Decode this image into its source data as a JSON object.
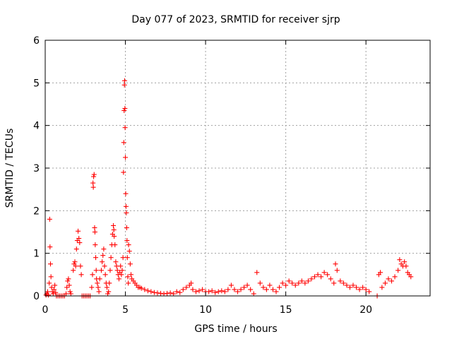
{
  "chart_data": {
    "type": "scatter",
    "title": "Day 077 of 2023, SRMTID for receiver sjrp",
    "xlabel": "GPS time / hours",
    "ylabel": "SRMTID / TECUs",
    "xlim": [
      0,
      24
    ],
    "ylim": [
      0,
      6
    ],
    "xticks": [
      0,
      5,
      10,
      15,
      20
    ],
    "yticks": [
      0,
      1,
      2,
      3,
      4,
      5,
      6
    ],
    "xtick_labels": [
      "0",
      "5",
      "10",
      "15",
      "20"
    ],
    "ytick_labels": [
      "0",
      "1",
      "2",
      "3",
      "4",
      "5",
      "6"
    ],
    "grid": true,
    "marker": "+",
    "series": [
      {
        "name": "SRMTID",
        "color": "#ff0000",
        "points": [
          [
            0.05,
            0.02
          ],
          [
            0.1,
            0.05
          ],
          [
            0.15,
            0.1
          ],
          [
            0.2,
            0.02
          ],
          [
            0.25,
            0.3
          ],
          [
            0.28,
            1.8
          ],
          [
            0.3,
            1.15
          ],
          [
            0.33,
            0.75
          ],
          [
            0.36,
            0.45
          ],
          [
            0.4,
            0.2
          ],
          [
            0.45,
            0.1
          ],
          [
            0.5,
            0.05
          ],
          [
            0.55,
            0.15
          ],
          [
            0.6,
            0.25
          ],
          [
            0.65,
            0.08
          ],
          [
            0.7,
            0.0
          ],
          [
            0.8,
            0.0
          ],
          [
            0.9,
            0.0
          ],
          [
            1.0,
            0.0
          ],
          [
            1.1,
            0.0
          ],
          [
            1.2,
            0.0
          ],
          [
            1.3,
            0.05
          ],
          [
            1.35,
            0.2
          ],
          [
            1.4,
            0.35
          ],
          [
            1.45,
            0.4
          ],
          [
            1.5,
            0.25
          ],
          [
            1.55,
            0.1
          ],
          [
            1.6,
            0.05
          ],
          [
            1.75,
            0.6
          ],
          [
            1.8,
            0.75
          ],
          [
            1.85,
            0.8
          ],
          [
            1.9,
            0.7
          ],
          [
            1.95,
            1.1
          ],
          [
            2.0,
            1.3
          ],
          [
            2.05,
            1.52
          ],
          [
            2.1,
            1.35
          ],
          [
            2.15,
            1.25
          ],
          [
            2.2,
            0.7
          ],
          [
            2.25,
            0.5
          ],
          [
            2.3,
            0.0
          ],
          [
            2.4,
            0.0
          ],
          [
            2.5,
            0.0
          ],
          [
            2.6,
            0.0
          ],
          [
            2.7,
            0.0
          ],
          [
            2.8,
            0.0
          ],
          [
            2.9,
            0.2
          ],
          [
            2.95,
            0.5
          ],
          [
            2.98,
            2.65
          ],
          [
            3.0,
            2.55
          ],
          [
            3.02,
            2.8
          ],
          [
            3.05,
            2.85
          ],
          [
            3.08,
            1.6
          ],
          [
            3.1,
            1.5
          ],
          [
            3.12,
            1.2
          ],
          [
            3.15,
            0.9
          ],
          [
            3.18,
            0.6
          ],
          [
            3.2,
            0.4
          ],
          [
            3.25,
            0.3
          ],
          [
            3.3,
            0.2
          ],
          [
            3.35,
            0.1
          ],
          [
            3.4,
            0.4
          ],
          [
            3.5,
            0.6
          ],
          [
            3.55,
            0.8
          ],
          [
            3.6,
            0.95
          ],
          [
            3.65,
            1.1
          ],
          [
            3.7,
            0.7
          ],
          [
            3.75,
            0.5
          ],
          [
            3.8,
            0.3
          ],
          [
            3.85,
            0.2
          ],
          [
            3.9,
            0.05
          ],
          [
            3.95,
            0.1
          ],
          [
            4.0,
            0.3
          ],
          [
            4.05,
            0.6
          ],
          [
            4.1,
            0.9
          ],
          [
            4.15,
            1.2
          ],
          [
            4.2,
            1.45
          ],
          [
            4.25,
            1.65
          ],
          [
            4.28,
            1.55
          ],
          [
            4.3,
            1.4
          ],
          [
            4.35,
            1.2
          ],
          [
            4.4,
            0.8
          ],
          [
            4.45,
            0.7
          ],
          [
            4.5,
            0.6
          ],
          [
            4.55,
            0.5
          ],
          [
            4.6,
            0.4
          ],
          [
            4.65,
            0.55
          ],
          [
            4.7,
            0.7
          ],
          [
            4.75,
            0.5
          ],
          [
            4.8,
            0.6
          ],
          [
            4.85,
            0.9
          ],
          [
            4.88,
            2.9
          ],
          [
            4.9,
            3.6
          ],
          [
            4.92,
            4.35
          ],
          [
            4.94,
            4.95
          ],
          [
            4.95,
            5.05
          ],
          [
            4.97,
            4.4
          ],
          [
            4.98,
            3.95
          ],
          [
            5.0,
            3.25
          ],
          [
            5.02,
            2.4
          ],
          [
            5.04,
            2.1
          ],
          [
            5.06,
            1.95
          ],
          [
            5.08,
            1.6
          ],
          [
            5.1,
            1.3
          ],
          [
            5.12,
            0.9
          ],
          [
            5.15,
            0.45
          ],
          [
            5.18,
            0.3
          ],
          [
            5.2,
            1.2
          ],
          [
            5.25,
            1.05
          ],
          [
            5.3,
            0.75
          ],
          [
            5.35,
            0.5
          ],
          [
            5.4,
            0.4
          ],
          [
            5.5,
            0.35
          ],
          [
            5.6,
            0.3
          ],
          [
            5.7,
            0.25
          ],
          [
            5.8,
            0.2
          ],
          [
            5.9,
            0.2
          ],
          [
            6.0,
            0.18
          ],
          [
            6.2,
            0.15
          ],
          [
            6.4,
            0.12
          ],
          [
            6.6,
            0.1
          ],
          [
            6.8,
            0.08
          ],
          [
            7.0,
            0.07
          ],
          [
            7.2,
            0.06
          ],
          [
            7.4,
            0.05
          ],
          [
            7.6,
            0.06
          ],
          [
            7.8,
            0.07
          ],
          [
            8.0,
            0.05
          ],
          [
            8.2,
            0.1
          ],
          [
            8.4,
            0.08
          ],
          [
            8.6,
            0.15
          ],
          [
            8.8,
            0.2
          ],
          [
            9.0,
            0.25
          ],
          [
            9.1,
            0.3
          ],
          [
            9.2,
            0.15
          ],
          [
            9.4,
            0.1
          ],
          [
            9.6,
            0.12
          ],
          [
            9.8,
            0.15
          ],
          [
            10.0,
            0.1
          ],
          [
            10.2,
            0.1
          ],
          [
            10.4,
            0.12
          ],
          [
            10.6,
            0.08
          ],
          [
            10.8,
            0.1
          ],
          [
            11.0,
            0.12
          ],
          [
            11.2,
            0.1
          ],
          [
            11.4,
            0.15
          ],
          [
            11.6,
            0.25
          ],
          [
            11.8,
            0.15
          ],
          [
            12.0,
            0.1
          ],
          [
            12.2,
            0.15
          ],
          [
            12.4,
            0.2
          ],
          [
            12.6,
            0.25
          ],
          [
            12.8,
            0.15
          ],
          [
            13.0,
            0.05
          ],
          [
            13.2,
            0.55
          ],
          [
            13.4,
            0.3
          ],
          [
            13.6,
            0.2
          ],
          [
            13.8,
            0.15
          ],
          [
            14.0,
            0.25
          ],
          [
            14.2,
            0.15
          ],
          [
            14.4,
            0.1
          ],
          [
            14.6,
            0.2
          ],
          [
            14.8,
            0.3
          ],
          [
            15.0,
            0.25
          ],
          [
            15.2,
            0.35
          ],
          [
            15.4,
            0.3
          ],
          [
            15.6,
            0.25
          ],
          [
            15.8,
            0.3
          ],
          [
            16.0,
            0.35
          ],
          [
            16.2,
            0.3
          ],
          [
            16.4,
            0.35
          ],
          [
            16.6,
            0.4
          ],
          [
            16.8,
            0.45
          ],
          [
            17.0,
            0.5
          ],
          [
            17.2,
            0.45
          ],
          [
            17.4,
            0.55
          ],
          [
            17.6,
            0.5
          ],
          [
            17.8,
            0.4
          ],
          [
            18.0,
            0.3
          ],
          [
            18.1,
            0.75
          ],
          [
            18.2,
            0.6
          ],
          [
            18.4,
            0.35
          ],
          [
            18.6,
            0.3
          ],
          [
            18.8,
            0.25
          ],
          [
            19.0,
            0.2
          ],
          [
            19.2,
            0.25
          ],
          [
            19.4,
            0.2
          ],
          [
            19.6,
            0.15
          ],
          [
            19.8,
            0.2
          ],
          [
            20.0,
            0.15
          ],
          [
            20.2,
            0.1
          ],
          [
            20.7,
            0.0
          ],
          [
            20.8,
            0.5
          ],
          [
            20.9,
            0.55
          ],
          [
            21.0,
            0.2
          ],
          [
            21.2,
            0.3
          ],
          [
            21.4,
            0.4
          ],
          [
            21.6,
            0.35
          ],
          [
            21.8,
            0.45
          ],
          [
            22.0,
            0.6
          ],
          [
            22.1,
            0.85
          ],
          [
            22.2,
            0.75
          ],
          [
            22.3,
            0.7
          ],
          [
            22.4,
            0.8
          ],
          [
            22.5,
            0.7
          ],
          [
            22.6,
            0.55
          ],
          [
            22.7,
            0.5
          ],
          [
            22.8,
            0.45
          ]
        ]
      }
    ]
  }
}
